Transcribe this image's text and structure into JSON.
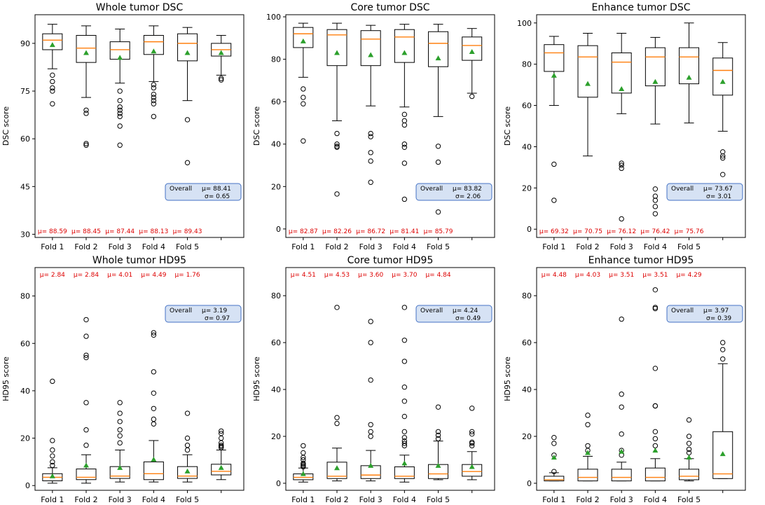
{
  "chart_data": [
    {
      "type": "box",
      "title": "Whole tumor DSC",
      "ylabel": "DSC score",
      "ylim": [
        29,
        99
      ],
      "yticks": [
        30,
        45,
        60,
        75,
        90
      ],
      "categories": [
        "Fold 1",
        "Fold 2",
        "Fold 3",
        "Fold 4",
        "Fold 5",
        ""
      ],
      "fold_means": [
        "μ= 88.59",
        "μ= 88.45",
        "μ= 87.44",
        "μ= 88.13",
        "μ= 89.43"
      ],
      "overall": {
        "label": "Overall",
        "mu": "μ=  88.41",
        "sigma": "σ= 0.65"
      },
      "boxes": [
        {
          "whislo": 82,
          "q1": 88,
          "med": 91,
          "q3": 93,
          "whishi": 96,
          "mean": 89.5,
          "fliers": [
            80,
            78,
            76,
            75,
            71
          ]
        },
        {
          "whislo": 73,
          "q1": 84,
          "med": 88.5,
          "q3": 92.5,
          "whishi": 95.5,
          "mean": 87,
          "fliers": [
            69,
            68,
            58.5,
            58
          ]
        },
        {
          "whislo": 77.5,
          "q1": 85,
          "med": 88,
          "q3": 90.5,
          "whishi": 94.5,
          "mean": 85.5,
          "fliers": [
            75,
            72,
            70,
            69,
            68,
            67,
            64,
            58
          ]
        },
        {
          "whislo": 78,
          "q1": 86.5,
          "med": 90.5,
          "q3": 92.5,
          "whishi": 95.5,
          "mean": 87.5,
          "fliers": [
            77,
            76,
            74,
            73,
            72,
            71,
            67
          ]
        },
        {
          "whislo": 72,
          "q1": 84.5,
          "med": 90,
          "q3": 93,
          "whishi": 95,
          "mean": 87,
          "fliers": [
            66,
            52.5
          ]
        },
        {
          "whislo": 80,
          "q1": 86,
          "med": 88,
          "q3": 90,
          "whishi": 92.5,
          "mean": 87,
          "fliers": [
            79,
            78.5
          ]
        }
      ]
    },
    {
      "type": "box",
      "title": "Core tumor DSC",
      "ylabel": "DSC score",
      "ylim": [
        -4,
        101
      ],
      "yticks": [
        0,
        20,
        40,
        60,
        80,
        100
      ],
      "categories": [
        "Fold 1",
        "Fold 2",
        "Fold 3",
        "Fold 4",
        "Fold 5",
        ""
      ],
      "fold_means": [
        "μ= 82.87",
        "μ= 82.26",
        "μ= 86.72",
        "μ= 81.41",
        "μ= 85.79"
      ],
      "overall": {
        "label": "Overall",
        "mu": "μ=  83.82",
        "sigma": "σ= 2.06"
      },
      "boxes": [
        {
          "whislo": 71.5,
          "q1": 85.5,
          "med": 92,
          "q3": 95,
          "whishi": 97,
          "mean": 88.5,
          "fliers": [
            66,
            62,
            59,
            41.5
          ]
        },
        {
          "whislo": 51,
          "q1": 77,
          "med": 91.5,
          "q3": 94,
          "whishi": 97,
          "mean": 83,
          "fliers": [
            45,
            40,
            39,
            38.5,
            16.5
          ]
        },
        {
          "whislo": 58,
          "q1": 77,
          "med": 89.5,
          "q3": 93.5,
          "whishi": 96,
          "mean": 82,
          "fliers": [
            45,
            43.5,
            36,
            32,
            22
          ]
        },
        {
          "whislo": 57.5,
          "q1": 78.5,
          "med": 90.5,
          "q3": 94,
          "whishi": 96.5,
          "mean": 83,
          "fliers": [
            54,
            51,
            49,
            40,
            38.5,
            31,
            14
          ]
        },
        {
          "whislo": 53,
          "q1": 76.5,
          "med": 87.5,
          "q3": 93,
          "whishi": 96.5,
          "mean": 80.5,
          "fliers": [
            39,
            31.5,
            8
          ]
        },
        {
          "whislo": 64,
          "q1": 79.5,
          "med": 86.5,
          "q3": 90.5,
          "whishi": 94.5,
          "mean": 83.5,
          "fliers": [
            62.5
          ]
        }
      ]
    },
    {
      "type": "box",
      "title": "Enhance tumor DSC",
      "ylabel": "DSC score",
      "ylim": [
        -4,
        104
      ],
      "yticks": [
        0,
        20,
        40,
        60,
        80,
        100
      ],
      "categories": [
        "Fold 1",
        "Fold 2",
        "Fold 3",
        "Fold 4",
        "Fold 5",
        ""
      ],
      "fold_means": [
        "μ= 69.32",
        "μ= 70.75",
        "μ= 76.12",
        "μ= 76.42",
        "μ= 75.76"
      ],
      "overall": {
        "label": "Overall",
        "mu": "μ=  73.67",
        "sigma": "σ= 3.01"
      },
      "boxes": [
        {
          "whislo": 60,
          "q1": 76.5,
          "med": 85.5,
          "q3": 89.5,
          "whishi": 93.5,
          "mean": 74.5,
          "fliers": [
            31.5,
            14
          ]
        },
        {
          "whislo": 35.5,
          "q1": 64,
          "med": 83.5,
          "q3": 89,
          "whishi": 95,
          "mean": 70.5,
          "fliers": []
        },
        {
          "whislo": 56,
          "q1": 66,
          "med": 81,
          "q3": 85.5,
          "whishi": 95,
          "mean": 68,
          "fliers": [
            32,
            31,
            29.5,
            5
          ]
        },
        {
          "whislo": 51,
          "q1": 69.5,
          "med": 83.5,
          "q3": 88,
          "whishi": 93,
          "mean": 71.5,
          "fliers": [
            19.5,
            16,
            14,
            11,
            7.5
          ]
        },
        {
          "whislo": 51.5,
          "q1": 70.5,
          "med": 83.5,
          "q3": 88,
          "whishi": 100,
          "mean": 73.5,
          "fliers": []
        },
        {
          "whislo": 47.5,
          "q1": 65,
          "med": 77,
          "q3": 83,
          "whishi": 90.5,
          "mean": 71.5,
          "fliers": [
            37.5,
            35.5,
            34.5,
            26.5
          ]
        }
      ]
    },
    {
      "type": "box",
      "title": "Whole tumor HD95",
      "ylabel": "HD95 score",
      "ylim": [
        -2,
        92
      ],
      "yticks": [
        0,
        20,
        40,
        60,
        80
      ],
      "categories": [
        "Fold 1",
        "Fold 2",
        "Fold 3",
        "Fold 4",
        "Fold 5",
        ""
      ],
      "fold_means": [
        "μ= 2.84",
        "μ= 2.84",
        "μ= 4.01",
        "μ= 4.49",
        "μ= 1.76"
      ],
      "overall": {
        "label": "Overall",
        "mu": "μ=  3.19",
        "sigma": "σ= 0.97"
      },
      "boxes": [
        {
          "whislo": 1,
          "q1": 2,
          "med": 3.5,
          "q3": 5,
          "whishi": 7.5,
          "mean": 4,
          "fliers": [
            44,
            19,
            15,
            12.5,
            10,
            8.5
          ]
        },
        {
          "whislo": 1,
          "q1": 2.5,
          "med": 3.5,
          "q3": 7,
          "whishi": 13,
          "mean": 8.5,
          "fliers": [
            70,
            63,
            55,
            54,
            35,
            23.5,
            17
          ]
        },
        {
          "whislo": 1.5,
          "q1": 3,
          "med": 4,
          "q3": 8,
          "whishi": 15,
          "mean": 7.5,
          "fliers": [
            35,
            30.5,
            27,
            23.5,
            21,
            18
          ]
        },
        {
          "whislo": 1.5,
          "q1": 2.5,
          "med": 5,
          "q3": 10,
          "whishi": 19,
          "mean": 11,
          "fliers": [
            64.5,
            63.5,
            48,
            39,
            32.5,
            28,
            26
          ]
        },
        {
          "whislo": 1.5,
          "q1": 3,
          "med": 4,
          "q3": 8,
          "whishi": 13,
          "mean": 6,
          "fliers": [
            30.5,
            20,
            17,
            15
          ]
        },
        {
          "whislo": 2.5,
          "q1": 4.5,
          "med": 6,
          "q3": 9,
          "whishi": 15,
          "mean": 7.5,
          "fliers": [
            23,
            22,
            20,
            18,
            17,
            16.5,
            16
          ]
        }
      ]
    },
    {
      "type": "box",
      "title": "Core tumor HD95",
      "ylabel": "HD95 score",
      "ylim": [
        -3,
        92
      ],
      "yticks": [
        0,
        20,
        40,
        60,
        80
      ],
      "categories": [
        "Fold 1",
        "Fold 2",
        "Fold 3",
        "Fold 4",
        "Fold 5",
        ""
      ],
      "fold_means": [
        "μ= 4.51",
        "μ= 4.53",
        "μ= 3.60",
        "μ= 3.70",
        "μ= 4.84"
      ],
      "overall": {
        "label": "Overall",
        "mu": "μ=  4.24",
        "sigma": "σ= 0.49"
      },
      "boxes": [
        {
          "whislo": 0.5,
          "q1": 1.5,
          "med": 2.5,
          "q3": 4,
          "whishi": 6.5,
          "mean": 4,
          "fliers": [
            16,
            13,
            11,
            10,
            8.5,
            8,
            7.5,
            7
          ]
        },
        {
          "whislo": 1,
          "q1": 2,
          "med": 3,
          "q3": 9,
          "whishi": 15,
          "mean": 6.5,
          "fliers": [
            75,
            28,
            25.5
          ]
        },
        {
          "whislo": 1,
          "q1": 2,
          "med": 3.5,
          "q3": 7.5,
          "whishi": 14,
          "mean": 7.5,
          "fliers": [
            69,
            60,
            44,
            25,
            22,
            20
          ]
        },
        {
          "whislo": 0.5,
          "q1": 2,
          "med": 3,
          "q3": 7,
          "whishi": 12,
          "mean": 8.5,
          "fliers": [
            75,
            61,
            52,
            41,
            35,
            28.5,
            22,
            19.5,
            18,
            17,
            16
          ]
        },
        {
          "whislo": 1.5,
          "q1": 2,
          "med": 4,
          "q3": 8,
          "whishi": 18,
          "mean": 7.5,
          "fliers": [
            32.5,
            22,
            20.5,
            19
          ]
        },
        {
          "whislo": 1.5,
          "q1": 3,
          "med": 5,
          "q3": 8,
          "whishi": 13.5,
          "mean": 7,
          "fliers": [
            32,
            22,
            21,
            17.5,
            17,
            16
          ]
        }
      ]
    },
    {
      "type": "box",
      "title": "Enhance tumor HD95",
      "ylabel": "HD95 score",
      "ylim": [
        -3,
        92
      ],
      "yticks": [
        0,
        20,
        40,
        60,
        80
      ],
      "categories": [
        "Fold 1",
        "Fold 2",
        "Fold 3",
        "Fold 4",
        "Fold 5",
        ""
      ],
      "fold_means": [
        "μ= 4.48",
        "μ= 4.03",
        "μ= 3.51",
        "μ= 3.51",
        "μ= 4.29"
      ],
      "overall": {
        "label": "Overall",
        "mu": "μ=  3.97",
        "sigma": "σ= 0.39"
      },
      "boxes": [
        {
          "whislo": 1,
          "q1": 1,
          "med": 1.5,
          "q3": 3,
          "whishi": 4.5,
          "mean": 11,
          "fliers": [
            19.5,
            17,
            12,
            5
          ]
        },
        {
          "whislo": 1,
          "q1": 1,
          "med": 2.5,
          "q3": 6,
          "whishi": 11.5,
          "mean": 13,
          "fliers": [
            29,
            25,
            16,
            14
          ]
        },
        {
          "whislo": 1,
          "q1": 1,
          "med": 2.5,
          "q3": 6,
          "whishi": 9,
          "mean": 13.5,
          "fliers": [
            70,
            38,
            32.5,
            21,
            14,
            12
          ]
        },
        {
          "whislo": 1,
          "q1": 1,
          "med": 2.5,
          "q3": 6.5,
          "whishi": 10.5,
          "mean": 14,
          "fliers": [
            82.5,
            75,
            74.5,
            49,
            33,
            33,
            22,
            19,
            16
          ]
        },
        {
          "whislo": 1,
          "q1": 1.5,
          "med": 3,
          "q3": 6,
          "whishi": 10.5,
          "mean": 11,
          "fliers": [
            27,
            20,
            17,
            14.5,
            13
          ]
        },
        {
          "whislo": 2,
          "q1": 2,
          "med": 4,
          "q3": 22,
          "whishi": 51,
          "mean": 12.5,
          "fliers": [
            60,
            57,
            53
          ]
        }
      ]
    }
  ]
}
